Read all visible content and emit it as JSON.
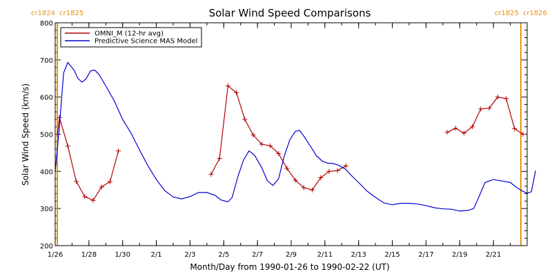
{
  "chart_data": {
    "type": "line",
    "title": "Solar Wind Speed Comparisons",
    "xlabel": "Month/Day from 1990-01-26 to 1990-02-22 (UT)",
    "ylabel": "Solar Wind Speed (km/s)",
    "xlim": [
      "1990-01-26",
      "1990-02-23"
    ],
    "ylim": [
      200,
      800
    ],
    "x_ticks": [
      {
        "date": "1990-01-26",
        "label": "1/26"
      },
      {
        "date": "1990-01-28",
        "label": "1/28"
      },
      {
        "date": "1990-01-30",
        "label": "1/30"
      },
      {
        "date": "1990-02-01",
        "label": "2/1"
      },
      {
        "date": "1990-02-03",
        "label": "2/3"
      },
      {
        "date": "1990-02-05",
        "label": "2/5"
      },
      {
        "date": "1990-02-07",
        "label": "2/7"
      },
      {
        "date": "1990-02-09",
        "label": "2/9"
      },
      {
        "date": "1990-02-11",
        "label": "2/11"
      },
      {
        "date": "1990-02-13",
        "label": "2/13"
      },
      {
        "date": "1990-02-15",
        "label": "2/15"
      },
      {
        "date": "1990-02-17",
        "label": "2/17"
      },
      {
        "date": "1990-02-19",
        "label": "2/19"
      },
      {
        "date": "1990-02-21",
        "label": "2/21"
      }
    ],
    "y_ticks": [
      200,
      300,
      400,
      500,
      600,
      700,
      800
    ],
    "legend_position": "top-left",
    "vertical_markers": [
      {
        "date": "1990-01-26 03:00",
        "left_label": "cr1824",
        "right_label": "cr1825",
        "color": "#e8920c"
      },
      {
        "date": "1990-02-22 15:00",
        "left_label": "cr1825",
        "right_label": "cr1826",
        "color": "#e8920c"
      }
    ],
    "series": [
      {
        "name": "OMNI_M (12-hr avg)",
        "color": "#b00000",
        "marker": "plus",
        "segments": [
          [
            [
              "1990-01-26 03:00",
              500
            ],
            [
              "1990-01-26 06:00",
              545
            ],
            [
              "1990-01-26 18:00",
              468
            ],
            [
              "1990-01-27 06:00",
              373
            ],
            [
              "1990-01-27 18:00",
              332
            ],
            [
              "1990-01-28 06:00",
              322
            ],
            [
              "1990-01-28 18:00",
              358
            ],
            [
              "1990-01-29 06:00",
              372
            ],
            [
              "1990-01-29 18:00",
              455
            ]
          ],
          [
            [
              "1990-02-04 06:00",
              392
            ],
            [
              "1990-02-04 18:00",
              435
            ],
            [
              "1990-02-05 06:00",
              630
            ],
            [
              "1990-02-05 18:00",
              612
            ],
            [
              "1990-02-06 06:00",
              540
            ],
            [
              "1990-02-06 18:00",
              498
            ],
            [
              "1990-02-07 06:00",
              473
            ],
            [
              "1990-02-07 18:00",
              469
            ],
            [
              "1990-02-08 06:00",
              448
            ],
            [
              "1990-02-08 18:00",
              408
            ],
            [
              "1990-02-09 06:00",
              376
            ],
            [
              "1990-02-09 18:00",
              356
            ],
            [
              "1990-02-10 06:00",
              350
            ],
            [
              "1990-02-10 18:00",
              383
            ],
            [
              "1990-02-11 06:00",
              400
            ],
            [
              "1990-02-11 18:00",
              402
            ],
            [
              "1990-02-12 06:00",
              415
            ]
          ],
          [
            [
              "1990-02-18 06:00",
              505
            ],
            [
              "1990-02-18 18:00",
              516
            ],
            [
              "1990-02-19 06:00",
              503
            ],
            [
              "1990-02-19 18:00",
              520
            ],
            [
              "1990-02-20 06:00",
              568
            ],
            [
              "1990-02-20 18:00",
              570
            ],
            [
              "1990-02-21 06:00",
              600
            ],
            [
              "1990-02-21 18:00",
              596
            ],
            [
              "1990-02-22 06:00",
              515
            ],
            [
              "1990-02-22 18:00",
              500
            ]
          ]
        ]
      },
      {
        "name": "Predictive Science MAS Model",
        "color": "#0000cc",
        "marker": "none",
        "points": [
          [
            "1990-01-26 00:00",
            400
          ],
          [
            "1990-01-26 06:00",
            520
          ],
          [
            "1990-01-26 12:00",
            665
          ],
          [
            "1990-01-26 18:00",
            693
          ],
          [
            "1990-01-27 03:00",
            672
          ],
          [
            "1990-01-27 08:00",
            651
          ],
          [
            "1990-01-27 14:00",
            640
          ],
          [
            "1990-01-27 20:00",
            649
          ],
          [
            "1990-01-28 02:00",
            670
          ],
          [
            "1990-01-28 08:00",
            673
          ],
          [
            "1990-01-28 14:00",
            662
          ],
          [
            "1990-01-29 00:00",
            630
          ],
          [
            "1990-01-29 12:00",
            590
          ],
          [
            "1990-01-30 00:00",
            540
          ],
          [
            "1990-01-30 12:00",
            503
          ],
          [
            "1990-01-31 00:00",
            458
          ],
          [
            "1990-01-31 12:00",
            415
          ],
          [
            "1990-02-01 00:00",
            378
          ],
          [
            "1990-02-01 12:00",
            348
          ],
          [
            "1990-02-02 00:00",
            331
          ],
          [
            "1990-02-02 12:00",
            326
          ],
          [
            "1990-02-03 00:00",
            332
          ],
          [
            "1990-02-03 12:00",
            343
          ],
          [
            "1990-02-04 00:00",
            343
          ],
          [
            "1990-02-04 12:00",
            335
          ],
          [
            "1990-02-04 20:00",
            323
          ],
          [
            "1990-02-05 06:00",
            318
          ],
          [
            "1990-02-05 12:00",
            330
          ],
          [
            "1990-02-05 20:00",
            385
          ],
          [
            "1990-02-06 04:00",
            430
          ],
          [
            "1990-02-06 12:00",
            455
          ],
          [
            "1990-02-06 20:00",
            443
          ],
          [
            "1990-02-07 06:00",
            410
          ],
          [
            "1990-02-07 14:00",
            375
          ],
          [
            "1990-02-07 22:00",
            362
          ],
          [
            "1990-02-08 06:00",
            380
          ],
          [
            "1990-02-08 14:00",
            440
          ],
          [
            "1990-02-08 22:00",
            485
          ],
          [
            "1990-02-09 06:00",
            508
          ],
          [
            "1990-02-09 12:00",
            510
          ],
          [
            "1990-02-09 18:00",
            495
          ],
          [
            "1990-02-10 04:00",
            466
          ],
          [
            "1990-02-10 12:00",
            442
          ],
          [
            "1990-02-10 20:00",
            428
          ],
          [
            "1990-02-11 04:00",
            422
          ],
          [
            "1990-02-11 12:00",
            421
          ],
          [
            "1990-02-11 20:00",
            416
          ],
          [
            "1990-02-12 06:00",
            405
          ],
          [
            "1990-02-12 12:00",
            392
          ],
          [
            "1990-02-13 00:00",
            370
          ],
          [
            "1990-02-13 12:00",
            347
          ],
          [
            "1990-02-14 00:00",
            330
          ],
          [
            "1990-02-14 12:00",
            315
          ],
          [
            "1990-02-15 00:00",
            310
          ],
          [
            "1990-02-15 12:00",
            314
          ],
          [
            "1990-02-16 00:00",
            314
          ],
          [
            "1990-02-16 12:00",
            312
          ],
          [
            "1990-02-17 00:00",
            308
          ],
          [
            "1990-02-17 12:00",
            302
          ],
          [
            "1990-02-18 00:00",
            299
          ],
          [
            "1990-02-18 12:00",
            298
          ],
          [
            "1990-02-19 00:00",
            293
          ],
          [
            "1990-02-19 12:00",
            295
          ],
          [
            "1990-02-19 20:00",
            300
          ],
          [
            "1990-02-20 06:00",
            343
          ],
          [
            "1990-02-20 12:00",
            370
          ],
          [
            "1990-02-21 00:00",
            378
          ],
          [
            "1990-02-21 12:00",
            374
          ],
          [
            "1990-02-22 00:00",
            370
          ],
          [
            "1990-02-22 08:00",
            358
          ],
          [
            "1990-02-22 16:00",
            348
          ],
          [
            "1990-02-23 00:00",
            341
          ],
          [
            "1990-02-23 06:00",
            345
          ],
          [
            "1990-02-23 12:00",
            402
          ]
        ]
      }
    ]
  }
}
